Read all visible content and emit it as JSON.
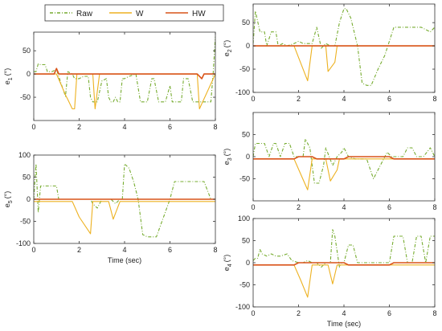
{
  "legend": {
    "entries": [
      {
        "label": "Raw",
        "color": "#77ac30",
        "dash": "dashdot"
      },
      {
        "label": "W",
        "color": "#edb120",
        "dash": "solid"
      },
      {
        "label": "HW",
        "color": "#d95319",
        "dash": "solid"
      }
    ]
  },
  "chart_data": [
    {
      "type": "line",
      "id": "e1",
      "ylabel_main": "e",
      "ylabel_sub": "1",
      "ylabel_unit": "(°)",
      "xlabel": "",
      "xlim": [
        0,
        8
      ],
      "ylim": [
        -100,
        90
      ],
      "xticks": [
        "0",
        "2",
        "4",
        "6",
        "8"
      ],
      "xtick_values": [
        0,
        2,
        4,
        6,
        8
      ],
      "yticks": [
        "50",
        "0",
        "-50"
      ],
      "ytick_values": [
        50,
        0,
        -50
      ],
      "series": [
        {
          "name": "Raw",
          "color": "#77ac30",
          "dash": "4,2,1,2",
          "x": [
            0,
            0.1,
            0.2,
            0.3,
            0.5,
            0.6,
            0.8,
            1.0,
            1.2,
            1.4,
            1.5,
            1.7,
            1.8,
            2.0,
            2.2,
            2.4,
            2.5,
            2.6,
            2.8,
            3.0,
            3.2,
            3.3,
            3.4,
            3.5,
            3.6,
            3.7,
            3.8,
            3.9,
            4.0,
            4.2,
            4.5,
            4.7,
            4.9,
            5.0,
            5.2,
            5.3,
            5.5,
            5.6,
            5.8,
            6.0,
            6.1,
            6.3,
            6.5,
            6.6,
            6.8,
            7.0,
            7.2,
            7.4,
            7.6,
            7.8,
            7.9,
            8.0
          ],
          "y": [
            5,
            5,
            22,
            20,
            20,
            5,
            5,
            10,
            -20,
            -48,
            5,
            0,
            -10,
            -10,
            -5,
            -5,
            -50,
            -60,
            -60,
            -15,
            -10,
            -50,
            -60,
            -60,
            -50,
            -60,
            -60,
            -10,
            -10,
            -5,
            0,
            -60,
            -60,
            -60,
            -10,
            -10,
            -60,
            -60,
            -60,
            -25,
            -60,
            -60,
            -60,
            -10,
            -10,
            -60,
            -60,
            -60,
            -60,
            -60,
            0,
            80
          ]
        },
        {
          "name": "W",
          "color": "#edb120",
          "dash": "",
          "x": [
            0,
            0.6,
            1.0,
            1.4,
            1.5,
            1.7,
            1.8,
            1.9,
            2.6,
            2.7,
            2.9,
            3.0,
            3.1,
            7.0,
            7.2,
            7.3,
            8.0
          ],
          "y": [
            0,
            0,
            0,
            -45,
            -55,
            -75,
            -75,
            0,
            0,
            -75,
            0,
            0,
            0,
            0,
            0,
            -75,
            0
          ],
          "interp": "W"
        },
        {
          "name": "HW",
          "color": "#d95319",
          "dash": "",
          "x": [
            0,
            0.9,
            1.0,
            1.1,
            7.2,
            7.4,
            7.5,
            8.0
          ],
          "y": [
            0,
            0,
            12,
            0,
            0,
            -10,
            0,
            0
          ]
        }
      ]
    },
    {
      "type": "line",
      "id": "e2",
      "ylabel_main": "e",
      "ylabel_sub": "2",
      "ylabel_unit": "(°)",
      "xlabel": "",
      "xlim": [
        0,
        8
      ],
      "ylim": [
        -100,
        90
      ],
      "xticks": [
        "0",
        "2",
        "4",
        "6",
        "8"
      ],
      "xtick_values": [
        0,
        2,
        4,
        6,
        8
      ],
      "yticks": [
        "50",
        "0",
        "-50",
        "-100"
      ],
      "ytick_values": [
        50,
        0,
        -50,
        -100
      ],
      "series": [
        {
          "name": "Raw",
          "color": "#77ac30",
          "dash": "4,2,1,2",
          "x": [
            0,
            0.1,
            0.3,
            0.5,
            0.6,
            0.8,
            1.0,
            1.1,
            1.3,
            1.5,
            1.8,
            2.0,
            2.2,
            2.6,
            2.8,
            3.0,
            3.2,
            3.4,
            3.6,
            3.8,
            4.0,
            4.1,
            4.3,
            4.6,
            4.8,
            5.0,
            5.2,
            5.5,
            5.8,
            6.0,
            6.2,
            6.6,
            7.0,
            7.4,
            7.8,
            8.0
          ],
          "y": [
            5,
            75,
            30,
            30,
            0,
            30,
            30,
            0,
            5,
            0,
            5,
            10,
            5,
            5,
            40,
            -5,
            5,
            0,
            0,
            50,
            80,
            80,
            60,
            0,
            -80,
            -85,
            -85,
            -50,
            -20,
            10,
            40,
            40,
            40,
            40,
            30,
            40
          ]
        },
        {
          "name": "W",
          "color": "#edb120",
          "dash": "",
          "x": [
            0,
            1.8,
            2.0,
            2.4,
            2.6,
            3.2,
            3.3,
            3.6,
            3.7,
            8.0
          ],
          "y": [
            0,
            0,
            -25,
            -75,
            0,
            0,
            -55,
            -35,
            0,
            0
          ]
        },
        {
          "name": "HW",
          "color": "#d95319",
          "dash": "",
          "x": [
            0,
            8.0
          ],
          "y": [
            0,
            0
          ]
        }
      ]
    },
    {
      "type": "line",
      "id": "e3",
      "ylabel_main": "e",
      "ylabel_sub": "3",
      "ylabel_unit": "(°)",
      "xlabel": "",
      "xlim": [
        0,
        8
      ],
      "ylim": [
        -100,
        100
      ],
      "xticks": [
        "0",
        "2",
        "4",
        "6",
        "8"
      ],
      "xtick_values": [
        0,
        2,
        4,
        6,
        8
      ],
      "yticks": [
        "50",
        "0",
        "-50"
      ],
      "ytick_values": [
        50,
        0,
        -50
      ],
      "series": [
        {
          "name": "Raw",
          "color": "#77ac30",
          "dash": "4,2,1,2",
          "x": [
            0,
            0.1,
            0.3,
            0.5,
            0.7,
            0.9,
            1.0,
            1.2,
            1.4,
            1.6,
            1.8,
            2.0,
            2.2,
            2.3,
            2.5,
            2.7,
            2.9,
            3.1,
            3.2,
            3.5,
            3.7,
            3.9,
            4.0,
            4.2,
            4.5,
            4.8,
            5.0,
            5.3,
            5.6,
            5.9,
            6.1,
            6.3,
            6.6,
            6.8,
            7.0,
            7.2,
            7.5,
            7.8,
            8.0
          ],
          "y": [
            0,
            30,
            30,
            30,
            0,
            30,
            30,
            0,
            30,
            30,
            0,
            0,
            0,
            40,
            20,
            -60,
            -60,
            -20,
            20,
            -20,
            0,
            10,
            20,
            0,
            -5,
            -5,
            -5,
            -50,
            -20,
            10,
            0,
            0,
            0,
            20,
            20,
            0,
            0,
            20,
            0
          ]
        },
        {
          "name": "W",
          "color": "#edb120",
          "dash": "",
          "x": [
            0,
            1.8,
            2.1,
            2.4,
            2.6,
            3.2,
            3.4,
            3.7,
            3.8,
            8.0
          ],
          "y": [
            -5,
            -5,
            -40,
            -75,
            -5,
            -5,
            -55,
            -30,
            -5,
            -5
          ]
        },
        {
          "name": "HW",
          "color": "#d95319",
          "dash": "",
          "x": [
            0,
            1.8,
            2.0,
            2.6,
            2.8,
            4.0,
            4.2,
            6.0,
            6.2,
            8.0
          ],
          "y": [
            -5,
            -5,
            0,
            0,
            -5,
            -5,
            0,
            0,
            -5,
            -5
          ]
        }
      ]
    },
    {
      "type": "line",
      "id": "e5",
      "ylabel_main": "e",
      "ylabel_sub": "5",
      "ylabel_unit": "(°)",
      "xlabel": "Time (sec)",
      "xlim": [
        0,
        8
      ],
      "ylim": [
        -100,
        100
      ],
      "xticks": [
        "0",
        "2",
        "4",
        "6",
        "8"
      ],
      "xtick_values": [
        0,
        2,
        4,
        6,
        8
      ],
      "yticks": [
        "100",
        "50",
        "0",
        "-50",
        "-100"
      ],
      "ytick_values": [
        100,
        50,
        0,
        -50,
        -100
      ],
      "series": [
        {
          "name": "Raw",
          "color": "#77ac30",
          "dash": "4,2,1,2",
          "x": [
            0,
            0.1,
            0.2,
            0.3,
            0.4,
            0.6,
            0.8,
            1.0,
            1.1,
            1.3,
            1.5,
            1.7,
            2.0,
            2.2,
            2.5,
            2.6,
            2.8,
            3.0,
            3.2,
            3.4,
            3.6,
            3.8,
            3.9,
            4.0,
            4.2,
            4.4,
            4.6,
            4.8,
            5.0,
            5.2,
            5.4,
            6.0,
            6.2,
            6.4,
            6.6,
            7.0,
            7.5,
            7.8,
            8.0
          ],
          "y": [
            0,
            80,
            -30,
            30,
            30,
            30,
            30,
            30,
            0,
            0,
            0,
            0,
            0,
            0,
            0,
            -10,
            -20,
            0,
            0,
            0,
            -10,
            0,
            0,
            80,
            70,
            40,
            0,
            -80,
            -85,
            -85,
            -85,
            0,
            40,
            40,
            40,
            40,
            40,
            0,
            0
          ]
        },
        {
          "name": "W",
          "color": "#edb120",
          "dash": "",
          "x": [
            0,
            1.7,
            2.0,
            2.5,
            2.6,
            3.3,
            3.5,
            3.8,
            8.0
          ],
          "y": [
            -5,
            -5,
            -40,
            -78,
            -5,
            -5,
            -45,
            -5,
            -5
          ]
        },
        {
          "name": "HW",
          "color": "#d95319",
          "dash": "",
          "x": [
            0,
            8.0
          ],
          "y": [
            0,
            0
          ]
        }
      ]
    },
    {
      "type": "line",
      "id": "e4",
      "ylabel_main": "e",
      "ylabel_sub": "4",
      "ylabel_unit": "(°)",
      "xlabel": "Time (sec)",
      "xlim": [
        0,
        8
      ],
      "ylim": [
        -100,
        100
      ],
      "xticks": [
        "0",
        "2",
        "4",
        "6",
        "8"
      ],
      "xtick_values": [
        0,
        2,
        4,
        6,
        8
      ],
      "yticks": [
        "100",
        "50",
        "0",
        "-50",
        "-100"
      ],
      "ytick_values": [
        100,
        50,
        0,
        -50,
        -100
      ],
      "series": [
        {
          "name": "Raw",
          "color": "#77ac30",
          "dash": "4,2,1,2",
          "x": [
            0,
            0.1,
            0.2,
            0.3,
            0.4,
            0.6,
            0.8,
            1.0,
            1.2,
            1.5,
            1.7,
            2.0,
            2.2,
            2.4,
            2.6,
            2.8,
            3.0,
            3.2,
            3.4,
            3.5,
            3.6,
            3.8,
            3.9,
            4.0,
            4.2,
            4.4,
            4.6,
            5.0,
            5.5,
            6.0,
            6.2,
            6.4,
            6.6,
            6.8,
            7.0,
            7.2,
            7.4,
            7.6,
            7.8,
            8.0
          ],
          "y": [
            5,
            10,
            10,
            30,
            20,
            15,
            20,
            15,
            15,
            20,
            5,
            0,
            0,
            5,
            0,
            0,
            -10,
            0,
            0,
            75,
            60,
            -10,
            0,
            0,
            40,
            40,
            0,
            0,
            0,
            0,
            60,
            60,
            60,
            0,
            0,
            60,
            60,
            0,
            60,
            60
          ]
        },
        {
          "name": "W",
          "color": "#edb120",
          "dash": "",
          "x": [
            0,
            1.8,
            2.1,
            2.4,
            2.6,
            3.3,
            3.5,
            3.7,
            8.0
          ],
          "y": [
            -5,
            -5,
            -40,
            -78,
            -5,
            -5,
            -48,
            -5,
            -5
          ]
        },
        {
          "name": "HW",
          "color": "#d95319",
          "dash": "",
          "x": [
            0,
            1.8,
            2.0,
            4.0,
            4.2,
            6.0,
            6.2,
            8.0
          ],
          "y": [
            -5,
            -5,
            0,
            0,
            -5,
            -5,
            0,
            0
          ]
        }
      ]
    }
  ]
}
